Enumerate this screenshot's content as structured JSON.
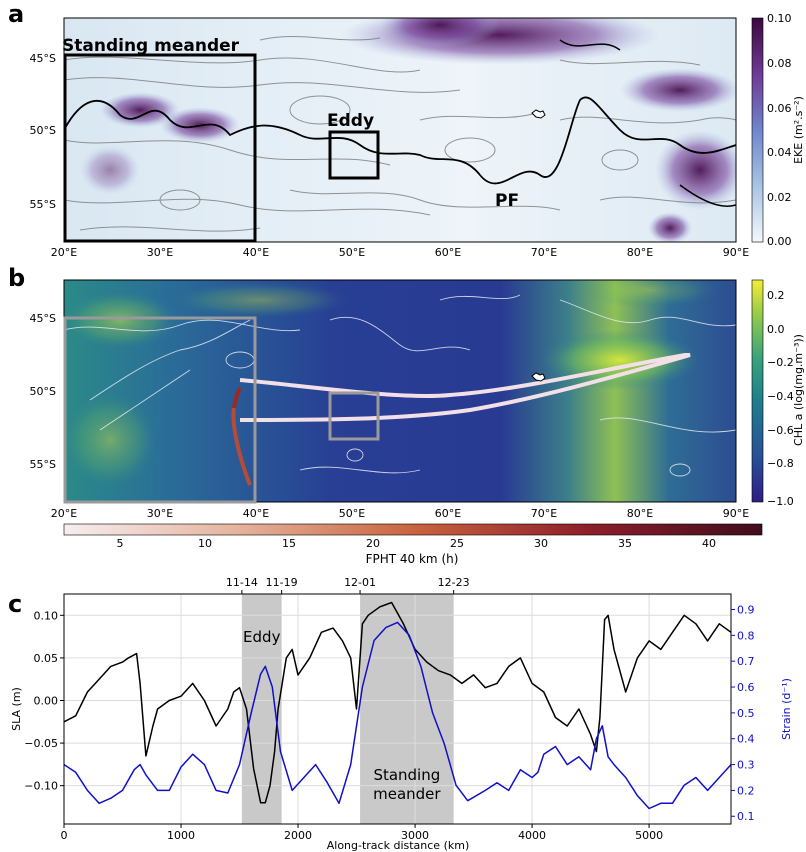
{
  "panel_a": {
    "letter": "a",
    "lat_ticks": [
      "45°S",
      "50°S",
      "55°S"
    ],
    "lon_ticks": [
      "20°E",
      "30°E",
      "40°E",
      "50°E",
      "60°E",
      "70°E",
      "80°E",
      "90°E"
    ],
    "labels": {
      "standing_meander": "Standing meander",
      "eddy": "Eddy",
      "pf": "PF"
    },
    "colorbar": {
      "label": "EKE (m².s⁻²)",
      "ticks": [
        "0.10",
        "0.08",
        "0.06",
        "0.04",
        "0.02",
        "0.00"
      ],
      "colors": [
        "#f4f8fb",
        "#a9c4e4",
        "#6f86cc",
        "#6f3a95",
        "#3b0a3f"
      ]
    }
  },
  "panel_b": {
    "letter": "b",
    "lat_ticks": [
      "45°S",
      "50°S",
      "55°S"
    ],
    "lon_ticks": [
      "20°E",
      "30°E",
      "40°E",
      "50°E",
      "60°E",
      "70°E",
      "80°E",
      "90°E"
    ],
    "colorbar": {
      "label": "CHL a (log(mg.m⁻³))",
      "ticks": [
        "0.2",
        "0.0",
        "−0.2",
        "−0.4",
        "−0.6",
        "−0.8",
        "−1.0"
      ],
      "colors": [
        "#2e1d83",
        "#2a4f96",
        "#1e7d8f",
        "#3aa37b",
        "#98cc49",
        "#f4ec3a"
      ]
    },
    "fpht_colorbar": {
      "label": "FPHT 40 km (h)",
      "ticks": [
        "5",
        "10",
        "15",
        "20",
        "25",
        "30",
        "35",
        "40"
      ],
      "colors": [
        "#f6eef0",
        "#e5b29c",
        "#c9643f",
        "#8f1f2b",
        "#3f0d1c"
      ]
    }
  },
  "chart_data": {
    "type": "line",
    "panel_letter": "c",
    "xlabel": "Along-track distance (km)",
    "ylabel": "SLA (m)",
    "ylabel_right": "Strain (d⁻¹)",
    "xlim": [
      0,
      5700
    ],
    "ylim": [
      -0.145,
      0.125
    ],
    "ylim_right": [
      0.07,
      0.96
    ],
    "x_ticks": [
      "0",
      "1000",
      "2000",
      "3000",
      "4000",
      "5000"
    ],
    "y_ticks": [
      "0.10",
      "0.05",
      "0.00",
      "−0.05",
      "−0.10"
    ],
    "y_ticks_right": [
      "0.9",
      "0.8",
      "0.7",
      "0.6",
      "0.5",
      "0.4",
      "0.3",
      "0.2",
      "0.1"
    ],
    "date_labels": [
      "11-14",
      "11-19",
      "12-01",
      "12-23"
    ],
    "date_positions": [
      1520,
      1860,
      2530,
      3330
    ],
    "shaded_regions": [
      {
        "label": "Eddy",
        "x": [
          1520,
          1860
        ]
      },
      {
        "label": "Standing\nmeander",
        "x": [
          2530,
          3330
        ]
      }
    ],
    "grid": true,
    "series": [
      {
        "name": "SLA",
        "axis": "left",
        "color": "#000000",
        "x": [
          0,
          100,
          200,
          300,
          400,
          500,
          550,
          620,
          650,
          700,
          760,
          800,
          900,
          1000,
          1100,
          1200,
          1300,
          1400,
          1450,
          1500,
          1560,
          1620,
          1680,
          1720,
          1760,
          1800,
          1830,
          1900,
          1950,
          2000,
          2100,
          2200,
          2300,
          2380,
          2450,
          2500,
          2550,
          2600,
          2700,
          2800,
          2900,
          3000,
          3100,
          3200,
          3300,
          3400,
          3500,
          3600,
          3700,
          3800,
          3900,
          4000,
          4100,
          4200,
          4300,
          4400,
          4500,
          4550,
          4580,
          4620,
          4650,
          4700,
          4800,
          4900,
          5000,
          5100,
          5200,
          5300,
          5400,
          5500,
          5600,
          5700
        ],
        "y": [
          -0.025,
          -0.018,
          0.01,
          0.025,
          0.04,
          0.045,
          0.05,
          0.055,
          0.02,
          -0.065,
          -0.03,
          -0.01,
          0.0,
          0.005,
          0.02,
          0.0,
          -0.03,
          -0.01,
          0.01,
          0.015,
          -0.01,
          -0.08,
          -0.12,
          -0.12,
          -0.1,
          -0.06,
          -0.01,
          0.05,
          0.06,
          0.03,
          0.05,
          0.08,
          0.085,
          0.07,
          0.05,
          -0.01,
          0.09,
          0.1,
          0.11,
          0.115,
          0.09,
          0.06,
          0.045,
          0.035,
          0.03,
          0.02,
          0.03,
          0.015,
          0.02,
          0.04,
          0.05,
          0.02,
          0.01,
          -0.02,
          -0.03,
          -0.01,
          -0.04,
          -0.06,
          -0.02,
          0.095,
          0.1,
          0.06,
          0.01,
          0.05,
          0.07,
          0.06,
          0.08,
          0.1,
          0.09,
          0.07,
          0.09,
          0.08
        ]
      },
      {
        "name": "Strain",
        "axis": "right",
        "color": "#1010c8",
        "x": [
          0,
          100,
          200,
          300,
          400,
          500,
          600,
          650,
          700,
          800,
          900,
          1000,
          1100,
          1200,
          1300,
          1400,
          1500,
          1600,
          1680,
          1720,
          1780,
          1850,
          1950,
          2050,
          2150,
          2250,
          2350,
          2450,
          2550,
          2650,
          2750,
          2850,
          2950,
          3050,
          3150,
          3250,
          3350,
          3450,
          3600,
          3700,
          3800,
          3900,
          4000,
          4050,
          4100,
          4200,
          4300,
          4400,
          4500,
          4550,
          4600,
          4650,
          4700,
          4800,
          4900,
          5000,
          5100,
          5200,
          5300,
          5400,
          5500,
          5600,
          5700
        ],
        "y": [
          0.3,
          0.27,
          0.2,
          0.15,
          0.17,
          0.2,
          0.28,
          0.3,
          0.26,
          0.2,
          0.2,
          0.29,
          0.34,
          0.3,
          0.2,
          0.19,
          0.3,
          0.5,
          0.65,
          0.68,
          0.6,
          0.35,
          0.2,
          0.25,
          0.3,
          0.23,
          0.15,
          0.3,
          0.6,
          0.78,
          0.83,
          0.85,
          0.8,
          0.68,
          0.5,
          0.38,
          0.22,
          0.16,
          0.2,
          0.23,
          0.2,
          0.28,
          0.25,
          0.27,
          0.34,
          0.37,
          0.3,
          0.33,
          0.28,
          0.4,
          0.45,
          0.33,
          0.3,
          0.25,
          0.18,
          0.13,
          0.15,
          0.15,
          0.22,
          0.25,
          0.2,
          0.25,
          0.3
        ]
      }
    ]
  }
}
